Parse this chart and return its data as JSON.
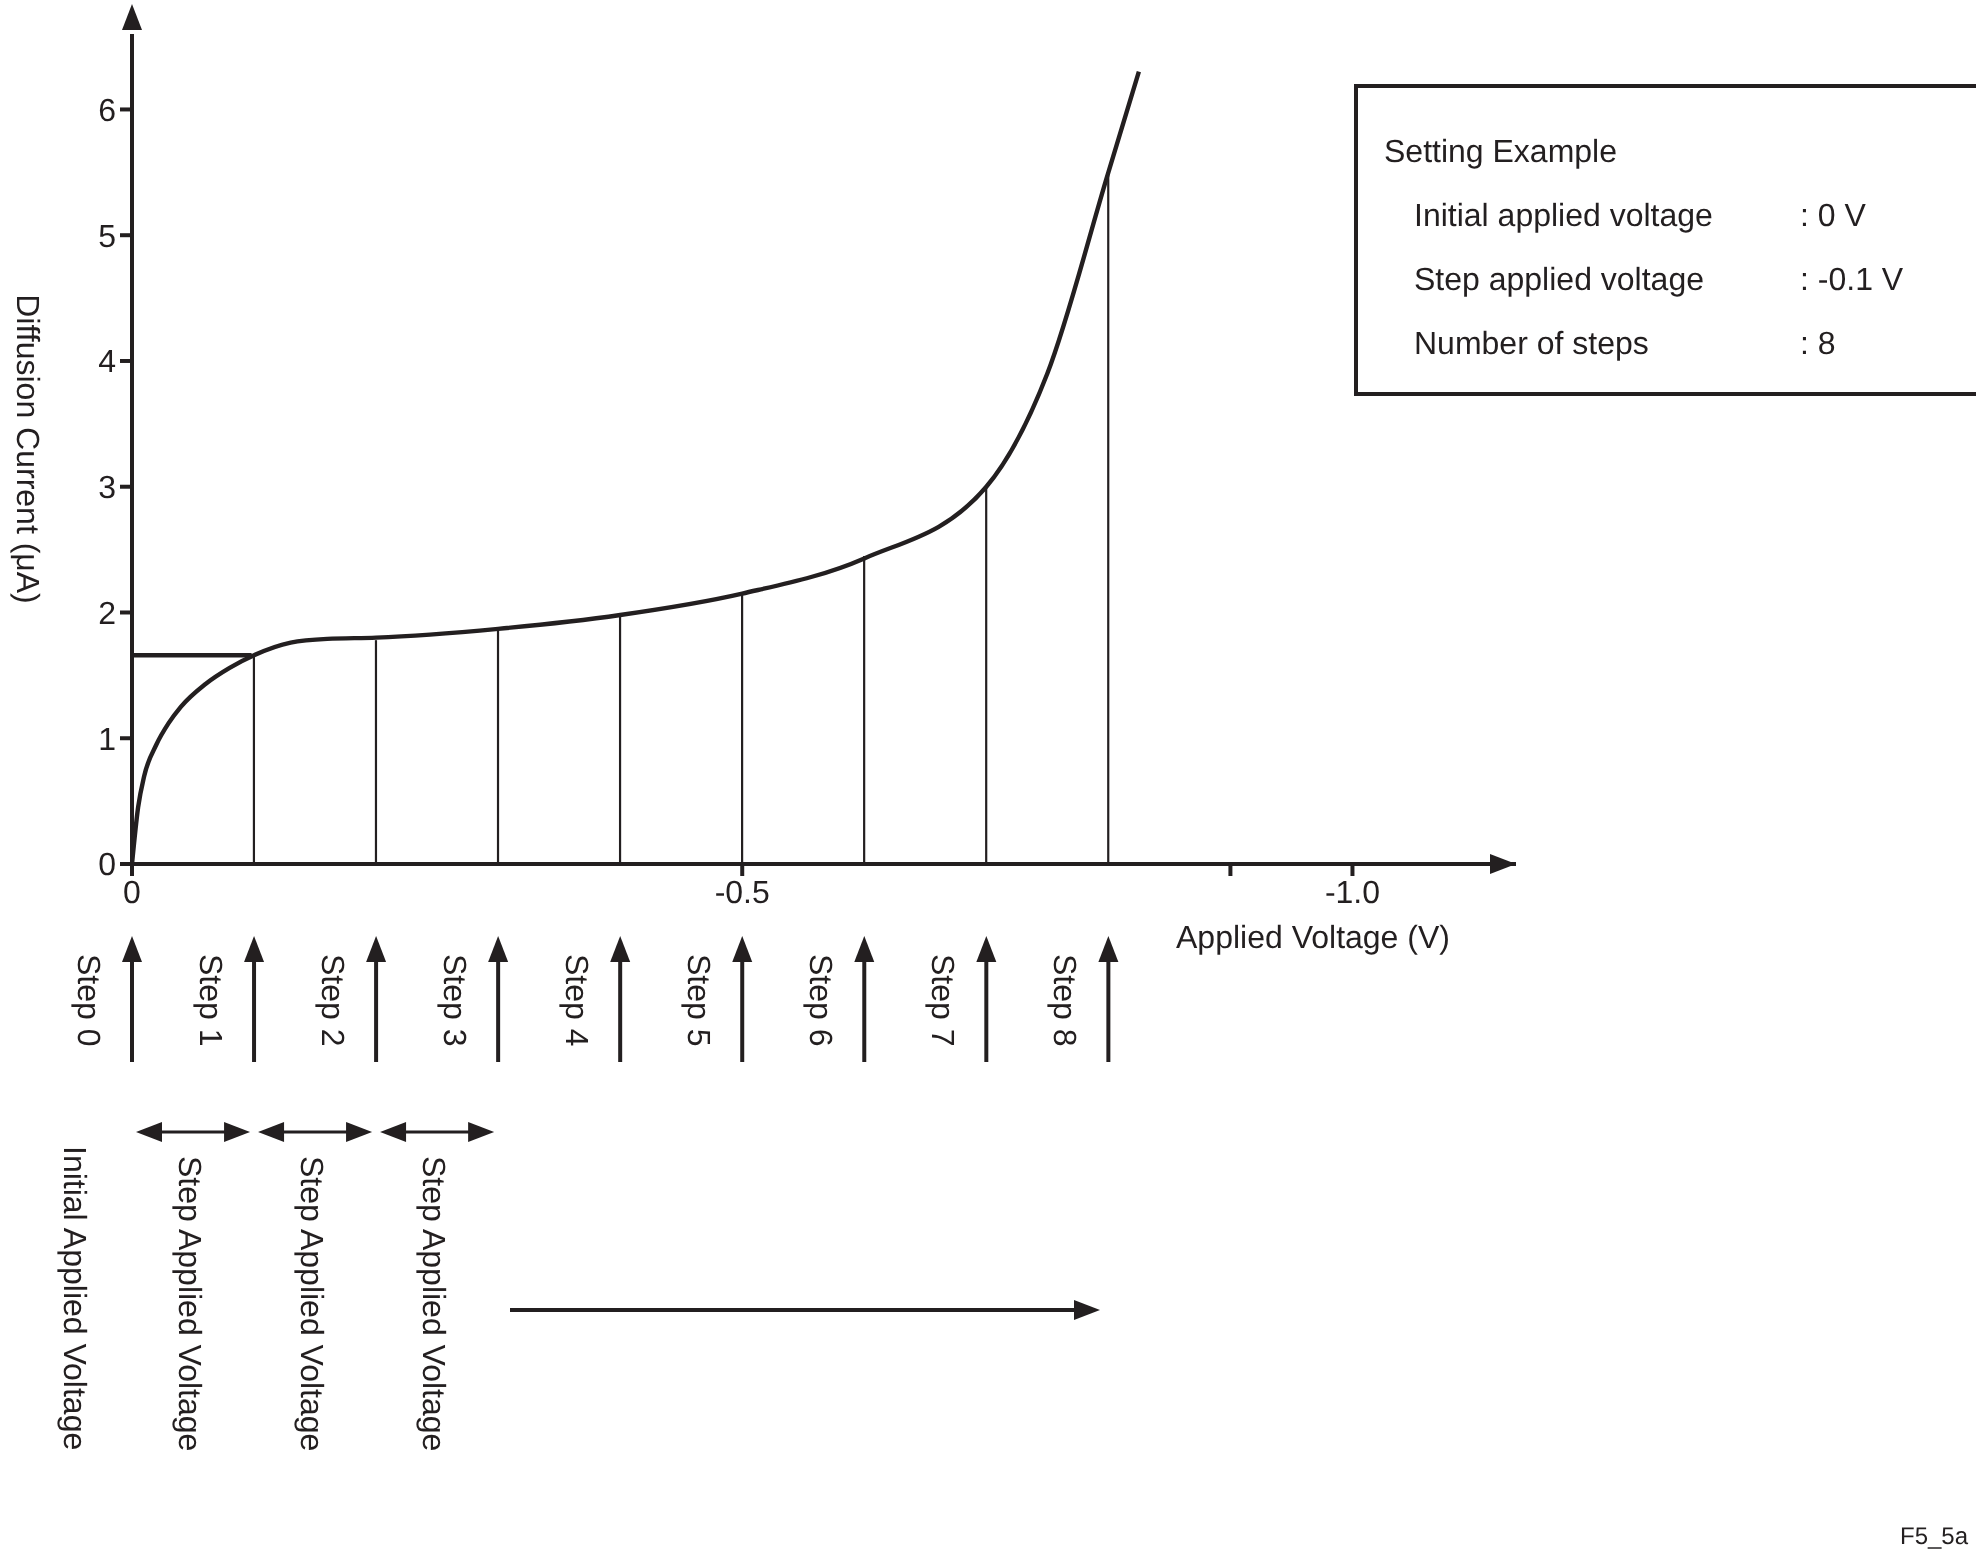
{
  "chart_data": {
    "type": "line",
    "xlabel": "Applied Voltage (V)",
    "ylabel": "Diffusion Current (μA)",
    "xlim": [
      0,
      -1.134
    ],
    "xticks": [
      0,
      -0.5,
      {
        "value": -0.9,
        "label": null
      },
      {
        "value": -1,
        "label": "-1.0"
      }
    ],
    "ylim": [
      0,
      6.6
    ],
    "yticks": [
      0,
      1,
      2,
      3,
      4,
      5,
      6
    ],
    "grid": false,
    "marker": "none",
    "line_style": "solid",
    "series": [
      {
        "color": "#231f20",
        "x": [
          0,
          -0.005,
          -0.01,
          -0.02,
          -0.03,
          -0.04,
          -0.06,
          -0.08,
          -0.1,
          -0.13,
          -0.16,
          -0.2,
          -0.3,
          -0.4,
          -0.5,
          -0.6,
          -0.7,
          -0.75,
          -0.8,
          -0.825
        ],
        "values": [
          0,
          0.45,
          0.7,
          0.95,
          1.12,
          1.25,
          1.43,
          1.56,
          1.66,
          1.76,
          1.79,
          1.8,
          1.87,
          1.98,
          2.15,
          2.43,
          3.0,
          3.9,
          5.5,
          6.3
        ]
      },
      {
        "type": "bar",
        "color": "#231f20",
        "x": [
          -0.1,
          -0.2,
          -0.3,
          -0.4,
          -0.5,
          -0.6,
          -0.7,
          -0.8
        ],
        "values": [
          1.66,
          1.78,
          1.87,
          1.99,
          2.16,
          2.45,
          3.0,
          5.5
        ]
      },
      {
        "color": "#231f20",
        "x": [
          0,
          -0.098
        ],
        "values": [
          1.66,
          1.66
        ]
      }
    ],
    "annotations": [
      "Step 0",
      "Step 1",
      "Step 2",
      "Step 3",
      "Step 4",
      "Step 5",
      "Step 6",
      "Step 7",
      "Step 8",
      "Initial Applied Voltage",
      "Step Applied Voltage",
      "Step Applied Voltage",
      "Step Applied Voltage",
      "Setting Example",
      "Initial applied voltage : 0 V",
      "Step applied voltage : -0.1 V",
      "Number of steps : 8",
      "F5_5a"
    ]
  }
}
